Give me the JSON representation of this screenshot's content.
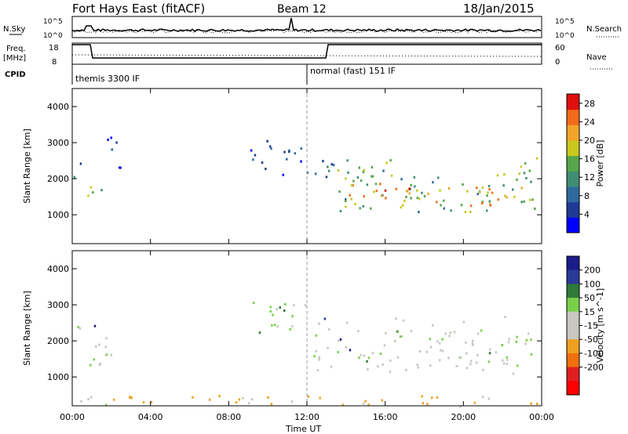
{
  "header": {
    "title": "Fort Hays East (fitACF)",
    "beam": "Beam 12",
    "date": "18/Jan/2015"
  },
  "noise_panel": {
    "left_label": "N.Sky",
    "right_label": "N.Search",
    "left_ticks": [
      "10^5",
      "10^0"
    ],
    "right_ticks": [
      "10^5",
      "10^0"
    ]
  },
  "freq_panel": {
    "left_label_line1": "Freq.",
    "left_label_line2": "[MHz]",
    "right_label": "Nave",
    "left_ticks": [
      "18",
      "8"
    ],
    "right_ticks": [
      "60",
      "0"
    ]
  },
  "cpid": {
    "label": "CPID",
    "modes": [
      {
        "name": "themis 3300 IF",
        "start_hour": 0
      },
      {
        "name": "normal (fast) 151 IF",
        "start_hour": 12
      }
    ]
  },
  "colors": {
    "power": [
      "#0000ff",
      "#1f3a96",
      "#2e6a9e",
      "#3f8f73",
      "#56a64a",
      "#c8c81e",
      "#f2a52a",
      "#f26b1a",
      "#e01010"
    ],
    "velocity": [
      "#1b1b8a",
      "#2a3a9a",
      "#2e7a3a",
      "#7ad04a",
      "#c8c8c0",
      "#c8c8c0",
      "#f0a020",
      "#f07010",
      "#e02020",
      "#ff0000"
    ]
  },
  "chart_data": [
    {
      "type": "heatmap",
      "title": "Power",
      "ylabel": "Slant Range [km]",
      "xlabel": "Time UT",
      "x_ticks": [
        "00:00",
        "04:00",
        "08:00",
        "12:00",
        "16:00",
        "20:00",
        "00:00"
      ],
      "y_ticks": [
        "1000",
        "2000",
        "3000",
        "4000"
      ],
      "ylim": [
        200,
        4500
      ],
      "xlim_hours": [
        0,
        24
      ],
      "colorbar": {
        "label": "Power [dB]",
        "ticks": [
          "4",
          "8",
          "12",
          "16",
          "20",
          "24",
          "28"
        ],
        "range": [
          0,
          30
        ]
      },
      "echo_regions": [
        {
          "t0": 0.0,
          "t1": 0.6,
          "r_low": 1950,
          "r_high": 2500,
          "power": 8
        },
        {
          "t0": 0.6,
          "t1": 1.5,
          "r_low": 1300,
          "r_high": 2100,
          "power": 14
        },
        {
          "t0": 1.0,
          "t1": 1.2,
          "r_low": 1350,
          "r_high": 1600,
          "power": 22
        },
        {
          "t0": 1.5,
          "t1": 2.6,
          "r_low": 2300,
          "r_high": 3300,
          "power": 6
        },
        {
          "t0": 9.0,
          "t1": 12.0,
          "r_low": 2100,
          "r_high": 3100,
          "power": 6
        },
        {
          "t0": 12.3,
          "t1": 13.5,
          "r_low": 1800,
          "r_high": 2800,
          "power": 8
        },
        {
          "t0": 13.5,
          "t1": 23.8,
          "r_low": 1100,
          "r_high": 2600,
          "power": 14
        },
        {
          "t0": 14.0,
          "t1": 23.0,
          "r_low": 1250,
          "r_high": 1900,
          "power": 22
        }
      ]
    },
    {
      "type": "heatmap",
      "title": "Velocity",
      "ylabel": "Slant Range [km]",
      "xlabel": "Time UT",
      "x_ticks": [
        "00:00",
        "04:00",
        "08:00",
        "12:00",
        "16:00",
        "20:00",
        "00:00"
      ],
      "y_ticks": [
        "1000",
        "2000",
        "3000",
        "4000"
      ],
      "ylim": [
        200,
        4500
      ],
      "xlim_hours": [
        0,
        24
      ],
      "colorbar": {
        "label": "Velocity [m s^-1]",
        "ticks": [
          "200",
          "100",
          "50",
          "15",
          "-15",
          "-50",
          "-100",
          "-200"
        ],
        "range": [
          -250,
          250
        ]
      },
      "echo_regions": [
        {
          "t0": 0.0,
          "t1": 2.0,
          "r_low": 1200,
          "r_high": 2500,
          "velocity": 0
        },
        {
          "t0": 9.0,
          "t1": 12.0,
          "r_low": 2100,
          "r_high": 3100,
          "velocity": 30
        },
        {
          "t0": 12.3,
          "t1": 23.8,
          "r_low": 1100,
          "r_high": 2700,
          "velocity": 0
        },
        {
          "t0": 0.0,
          "t1": 24.0,
          "r_low": 200,
          "r_high": 500,
          "velocity": -60
        }
      ]
    }
  ],
  "x_axis_title": "Time UT"
}
